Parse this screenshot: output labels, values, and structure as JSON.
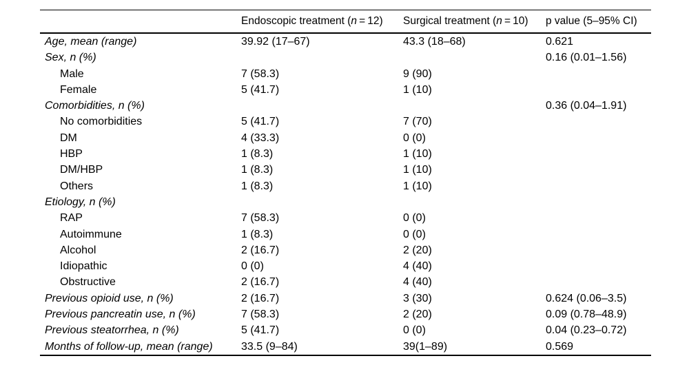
{
  "page": {
    "background_color": "#ffffff",
    "text_color": "#000000",
    "rule_color": "#000000"
  },
  "table": {
    "header": {
      "row_label_column": "",
      "columns": [
        {
          "name": "endoscopic",
          "pre": "Endoscopic treatment (",
          "n": "n",
          "post": " = 12)"
        },
        {
          "name": "surgical",
          "pre": "Surgical treatment (",
          "n": "n",
          "post": " = 10)"
        },
        {
          "name": "p_value",
          "pre": "p value (5–95% CI)",
          "n": "",
          "post": ""
        }
      ]
    },
    "rows": [
      {
        "label": "Age, mean (range)",
        "style": "category",
        "endoscopic": "39.92 (17–67)",
        "surgical": "43.3 (18–68)",
        "p": "0.621"
      },
      {
        "label": "Sex, n (%)",
        "style": "category",
        "endoscopic": "",
        "surgical": "",
        "p": "0.16 (0.01–1.56)"
      },
      {
        "label": "Male",
        "style": "sub",
        "endoscopic": "7 (58.3)",
        "surgical": "9 (90)",
        "p": ""
      },
      {
        "label": "Female",
        "style": "sub",
        "endoscopic": "5 (41.7)",
        "surgical": "1 (10)",
        "p": ""
      },
      {
        "label": "Comorbidities, n (%)",
        "style": "category",
        "endoscopic": "",
        "surgical": "",
        "p": "0.36 (0.04–1.91)"
      },
      {
        "label": "No comorbidities",
        "style": "sub",
        "endoscopic": "5 (41.7)",
        "surgical": "7 (70)",
        "p": ""
      },
      {
        "label": "DM",
        "style": "sub",
        "endoscopic": "4 (33.3)",
        "surgical": "0 (0)",
        "p": ""
      },
      {
        "label": "HBP",
        "style": "sub",
        "endoscopic": "1 (8.3)",
        "surgical": "1 (10)",
        "p": ""
      },
      {
        "label": "DM/HBP",
        "style": "sub",
        "endoscopic": "1 (8.3)",
        "surgical": "1 (10)",
        "p": ""
      },
      {
        "label": "Others",
        "style": "sub",
        "endoscopic": "1 (8.3)",
        "surgical": "1 (10)",
        "p": ""
      },
      {
        "label": "Etiology, n (%)",
        "style": "category",
        "endoscopic": "",
        "surgical": "",
        "p": ""
      },
      {
        "label": "RAP",
        "style": "sub",
        "endoscopic": "7 (58.3)",
        "surgical": "0 (0)",
        "p": ""
      },
      {
        "label": "Autoimmune",
        "style": "sub",
        "endoscopic": "1 (8.3)",
        "surgical": "0 (0)",
        "p": ""
      },
      {
        "label": "Alcohol",
        "style": "sub",
        "endoscopic": "2 (16.7)",
        "surgical": "2 (20)",
        "p": ""
      },
      {
        "label": "Idiopathic",
        "style": "sub",
        "endoscopic": "0 (0)",
        "surgical": "4 (40)",
        "p": ""
      },
      {
        "label": "Obstructive",
        "style": "sub",
        "endoscopic": "2 (16.7)",
        "surgical": "4 (40)",
        "p": ""
      },
      {
        "label": "Previous opioid use, n (%)",
        "style": "category",
        "endoscopic": "2 (16.7)",
        "surgical": "3 (30)",
        "p": "0.624 (0.06–3.5)"
      },
      {
        "label": "Previous pancreatin use, n (%)",
        "style": "category",
        "endoscopic": "7 (58.3)",
        "surgical": "2 (20)",
        "p": "0.09 (0.78–48.9)"
      },
      {
        "label": "Previous steatorrhea, n (%)",
        "style": "category",
        "endoscopic": "5 (41.7)",
        "surgical": "0 (0)",
        "p": "0.04 (0.23–0.72)"
      },
      {
        "label": "Months of follow-up, mean (range)",
        "style": "category",
        "endoscopic": "33.5 (9–84)",
        "surgical": "39(1–89)",
        "p": "0.569"
      }
    ]
  }
}
